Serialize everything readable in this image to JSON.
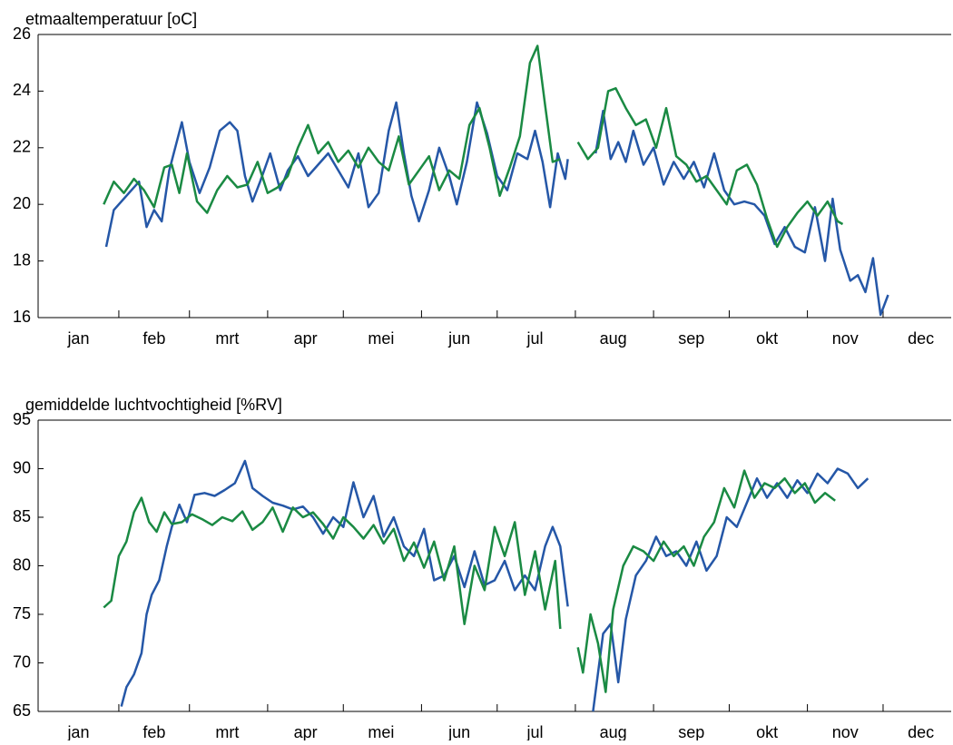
{
  "chart_data": [
    {
      "type": "line",
      "title": "etmaaltemperatuur [oC]",
      "xlim": [
        0,
        362
      ],
      "xticks": [
        32,
        60,
        91,
        121,
        152,
        182,
        213,
        244,
        274,
        305,
        335
      ],
      "month_labels": [
        {
          "value": 16,
          "label": "jan"
        },
        {
          "value": 46,
          "label": "feb"
        },
        {
          "value": 75,
          "label": "mrt"
        },
        {
          "value": 106,
          "label": "apr"
        },
        {
          "value": 136,
          "label": "mei"
        },
        {
          "value": 167,
          "label": "jun"
        },
        {
          "value": 197,
          "label": "jul"
        },
        {
          "value": 228,
          "label": "aug"
        },
        {
          "value": 259,
          "label": "sep"
        },
        {
          "value": 289,
          "label": "okt"
        },
        {
          "value": 320,
          "label": "nov"
        },
        {
          "value": 350,
          "label": "dec"
        }
      ],
      "ylim": [
        16,
        26
      ],
      "yticks": [
        16,
        18,
        20,
        22,
        24,
        26
      ],
      "series": [
        {
          "color": "#2557a7",
          "x": [
            27,
            30,
            35,
            40,
            43,
            46,
            49,
            52,
            57,
            60,
            64,
            68,
            72,
            76,
            79,
            82,
            85,
            88,
            92,
            96,
            99,
            103,
            107,
            111,
            115,
            119,
            123,
            127,
            131,
            135,
            139,
            142,
            145,
            148,
            151,
            155,
            159,
            163,
            166,
            170,
            174,
            178,
            182,
            186,
            190,
            194,
            197,
            200,
            203,
            206,
            209,
            210,
            null,
            221,
            224,
            227,
            230,
            233,
            236,
            240,
            244,
            248,
            252,
            256,
            260,
            264,
            268,
            272,
            276,
            280,
            284,
            288,
            292,
            296,
            300,
            304,
            308,
            312,
            315,
            318,
            322,
            325,
            328,
            331,
            334,
            337
          ],
          "values": [
            18.5,
            19.8,
            20.3,
            20.8,
            19.2,
            19.8,
            19.4,
            21.2,
            22.9,
            21.5,
            20.4,
            21.3,
            22.6,
            22.9,
            22.6,
            21.0,
            20.1,
            20.8,
            21.8,
            20.5,
            21.2,
            21.7,
            21.0,
            21.4,
            21.8,
            21.2,
            20.6,
            21.8,
            19.9,
            20.4,
            22.6,
            23.6,
            21.8,
            20.3,
            19.4,
            20.5,
            22.0,
            21.0,
            20.0,
            21.5,
            23.6,
            22.5,
            21.0,
            20.5,
            21.8,
            21.6,
            22.6,
            21.5,
            19.9,
            21.8,
            20.9,
            21.6,
            null,
            21.8,
            23.3,
            21.6,
            22.2,
            21.5,
            22.6,
            21.4,
            22.0,
            20.7,
            21.5,
            20.9,
            21.5,
            20.6,
            21.8,
            20.5,
            20.0,
            20.1,
            20.0,
            19.6,
            18.6,
            19.2,
            18.5,
            18.3,
            19.9,
            18.0,
            20.2,
            18.4,
            17.3,
            17.5,
            16.9,
            18.1,
            16.1,
            16.8
          ]
        },
        {
          "color": "#1a8a43",
          "x": [
            26,
            30,
            34,
            38,
            42,
            46,
            50,
            53,
            56,
            59,
            63,
            67,
            71,
            75,
            79,
            83,
            87,
            91,
            95,
            99,
            103,
            107,
            111,
            115,
            119,
            123,
            127,
            131,
            135,
            139,
            143,
            147,
            151,
            155,
            159,
            163,
            167,
            171,
            175,
            179,
            183,
            187,
            191,
            195,
            198,
            201,
            204,
            207,
            null,
            214,
            218,
            222,
            226,
            229,
            233,
            237,
            241,
            245,
            249,
            253,
            257,
            261,
            265,
            269,
            273,
            277,
            281,
            285,
            289,
            293,
            297,
            301,
            305,
            309,
            313,
            317,
            319
          ],
          "values": [
            20.0,
            20.8,
            20.4,
            20.9,
            20.5,
            19.9,
            21.3,
            21.4,
            20.4,
            21.8,
            20.1,
            19.7,
            20.5,
            21.0,
            20.6,
            20.7,
            21.5,
            20.4,
            20.6,
            21.0,
            22.0,
            22.8,
            21.8,
            22.2,
            21.5,
            21.9,
            21.3,
            22.0,
            21.5,
            21.2,
            22.4,
            20.7,
            21.2,
            21.7,
            20.5,
            21.2,
            20.9,
            22.8,
            23.4,
            22.0,
            20.3,
            21.3,
            22.4,
            25.0,
            25.6,
            23.5,
            21.5,
            21.6,
            null,
            22.2,
            21.6,
            22.0,
            24.0,
            24.1,
            23.4,
            22.8,
            23.0,
            22.0,
            23.4,
            21.7,
            21.4,
            20.8,
            21.0,
            20.5,
            20.0,
            21.2,
            21.4,
            20.7,
            19.5,
            18.5,
            19.2,
            19.7,
            20.1,
            19.6,
            20.1,
            19.4,
            19.3
          ]
        }
      ]
    },
    {
      "type": "line",
      "title": "gemiddelde luchtvochtigheid [%RV]",
      "xlim": [
        0,
        362
      ],
      "xticks": [
        32,
        60,
        91,
        121,
        152,
        182,
        213,
        244,
        274,
        305,
        335
      ],
      "month_labels": [
        {
          "value": 16,
          "label": "jan"
        },
        {
          "value": 46,
          "label": "feb"
        },
        {
          "value": 75,
          "label": "mrt"
        },
        {
          "value": 106,
          "label": "apr"
        },
        {
          "value": 136,
          "label": "mei"
        },
        {
          "value": 167,
          "label": "jun"
        },
        {
          "value": 197,
          "label": "jul"
        },
        {
          "value": 228,
          "label": "aug"
        },
        {
          "value": 259,
          "label": "sep"
        },
        {
          "value": 289,
          "label": "okt"
        },
        {
          "value": 320,
          "label": "nov"
        },
        {
          "value": 350,
          "label": "dec"
        }
      ],
      "ylim": [
        65,
        95
      ],
      "yticks": [
        65,
        70,
        75,
        80,
        85,
        90,
        95
      ],
      "series": [
        {
          "color": "#2557a7",
          "x": [
            33,
            35,
            38,
            41,
            43,
            45,
            48,
            51,
            53,
            56,
            59,
            62,
            66,
            70,
            74,
            78,
            82,
            85,
            89,
            93,
            97,
            101,
            105,
            109,
            113,
            117,
            121,
            125,
            129,
            133,
            137,
            141,
            145,
            149,
            153,
            157,
            161,
            165,
            169,
            173,
            177,
            181,
            185,
            189,
            193,
            197,
            201,
            204,
            207,
            210,
            null,
            220,
            224,
            227,
            230,
            233,
            237,
            241,
            245,
            249,
            253,
            257,
            261,
            265,
            269,
            273,
            277,
            281,
            285,
            289,
            293,
            297,
            301,
            305,
            309,
            313,
            317,
            321,
            325,
            329
          ],
          "values": [
            65.5,
            67.5,
            68.8,
            71,
            75,
            77,
            78.5,
            82,
            84,
            86.3,
            84.5,
            87.3,
            87.5,
            87.2,
            87.8,
            88.5,
            90.8,
            88,
            87.2,
            86.5,
            86.2,
            85.8,
            86.1,
            85.0,
            83.3,
            85.0,
            84.0,
            88.6,
            85.0,
            87.2,
            83.0,
            85.0,
            82.0,
            81.0,
            83.8,
            78.5,
            79.0,
            81.0,
            77.8,
            81.5,
            78.0,
            78.5,
            80.5,
            77.5,
            79.0,
            77.5,
            82.0,
            84.0,
            82.0,
            75.8,
            null,
            65.0,
            73.0,
            74.0,
            68.0,
            74.5,
            79.0,
            80.5,
            83.0,
            81.0,
            81.5,
            80.0,
            82.5,
            79.5,
            81.0,
            85.0,
            84.0,
            86.5,
            89.0,
            87.0,
            88.5,
            87.0,
            88.8,
            87.5,
            89.5,
            88.5,
            90.0,
            89.5,
            88.0,
            89.0
          ]
        },
        {
          "color": "#1a8a43",
          "x": [
            26,
            29,
            32,
            35,
            38,
            41,
            44,
            47,
            50,
            53,
            57,
            61,
            65,
            69,
            73,
            77,
            81,
            85,
            89,
            93,
            97,
            101,
            105,
            109,
            113,
            117,
            121,
            125,
            129,
            133,
            137,
            141,
            145,
            149,
            153,
            157,
            161,
            165,
            169,
            173,
            177,
            181,
            185,
            189,
            193,
            197,
            201,
            205,
            207,
            null,
            214,
            216,
            219,
            222,
            225,
            228,
            232,
            236,
            240,
            244,
            248,
            252,
            256,
            260,
            264,
            268,
            272,
            276,
            280,
            284,
            288,
            292,
            296,
            300,
            304,
            308,
            312,
            316
          ],
          "values": [
            75.7,
            76.4,
            81,
            82.5,
            85.5,
            87,
            84.5,
            83.5,
            85.5,
            84.3,
            84.5,
            85.3,
            84.8,
            84.2,
            85.0,
            84.6,
            85.6,
            83.7,
            84.5,
            86.0,
            83.5,
            86.0,
            85.0,
            85.5,
            84.3,
            82.8,
            85.0,
            84.0,
            82.8,
            84.2,
            82.3,
            83.8,
            80.5,
            82.4,
            79.8,
            82.5,
            78.5,
            82.0,
            74.0,
            80.0,
            77.5,
            84.0,
            81.0,
            84.5,
            77.0,
            81.5,
            75.5,
            80.5,
            73.5,
            null,
            71.6,
            69.0,
            75.0,
            72.0,
            67.0,
            75.5,
            80.0,
            82.0,
            81.5,
            80.5,
            82.5,
            81.0,
            82.0,
            80.0,
            83.0,
            84.5,
            88.0,
            86.0,
            89.8,
            87.0,
            88.5,
            88.0,
            89.0,
            87.5,
            88.5,
            86.5,
            87.5,
            86.7
          ]
        }
      ]
    }
  ]
}
